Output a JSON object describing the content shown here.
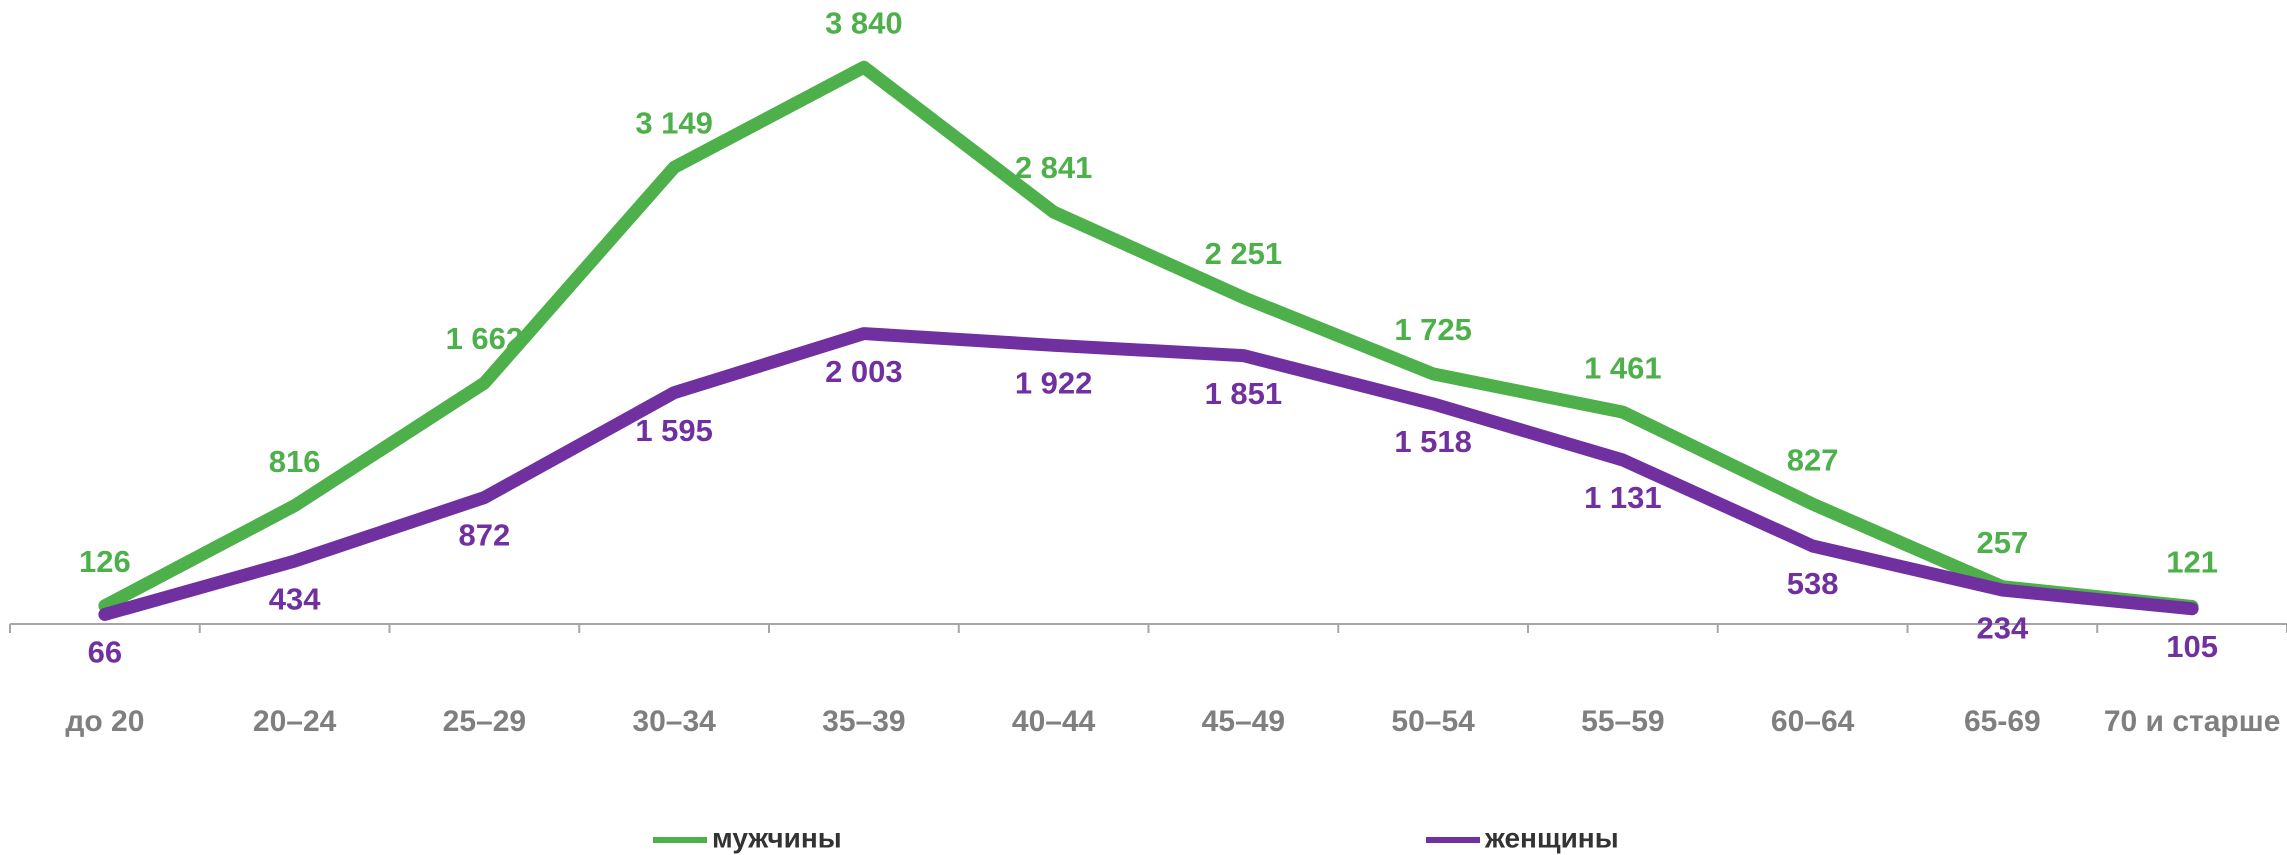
{
  "chart_data": {
    "type": "line",
    "categories": [
      "до 20",
      "20–24",
      "25–29",
      "30–34",
      "35–39",
      "40–44",
      "45–49",
      "50–54",
      "55–59",
      "60–64",
      "65-69",
      "70 и старше"
    ],
    "ylim": [
      0,
      4000
    ],
    "series": [
      {
        "name": "мужчины",
        "color": "#4db04a",
        "values": [
          126,
          816,
          1662,
          3149,
          3840,
          2841,
          2251,
          1725,
          1461,
          827,
          257,
          121
        ],
        "value_labels": [
          "126",
          "816",
          "1 662",
          "3 149",
          "3 840",
          "2 841",
          "2 251",
          "1 725",
          "1 461",
          "827",
          "257",
          "121"
        ]
      },
      {
        "name": "женщины",
        "color": "#7030a0",
        "values": [
          66,
          434,
          872,
          1595,
          2003,
          1922,
          1851,
          1518,
          1131,
          538,
          234,
          105
        ],
        "value_labels": [
          "66",
          "434",
          "872",
          "1 595",
          "2 003",
          "1 922",
          "1 851",
          "1 518",
          "1 131",
          "538",
          "234",
          "105"
        ]
      }
    ]
  }
}
